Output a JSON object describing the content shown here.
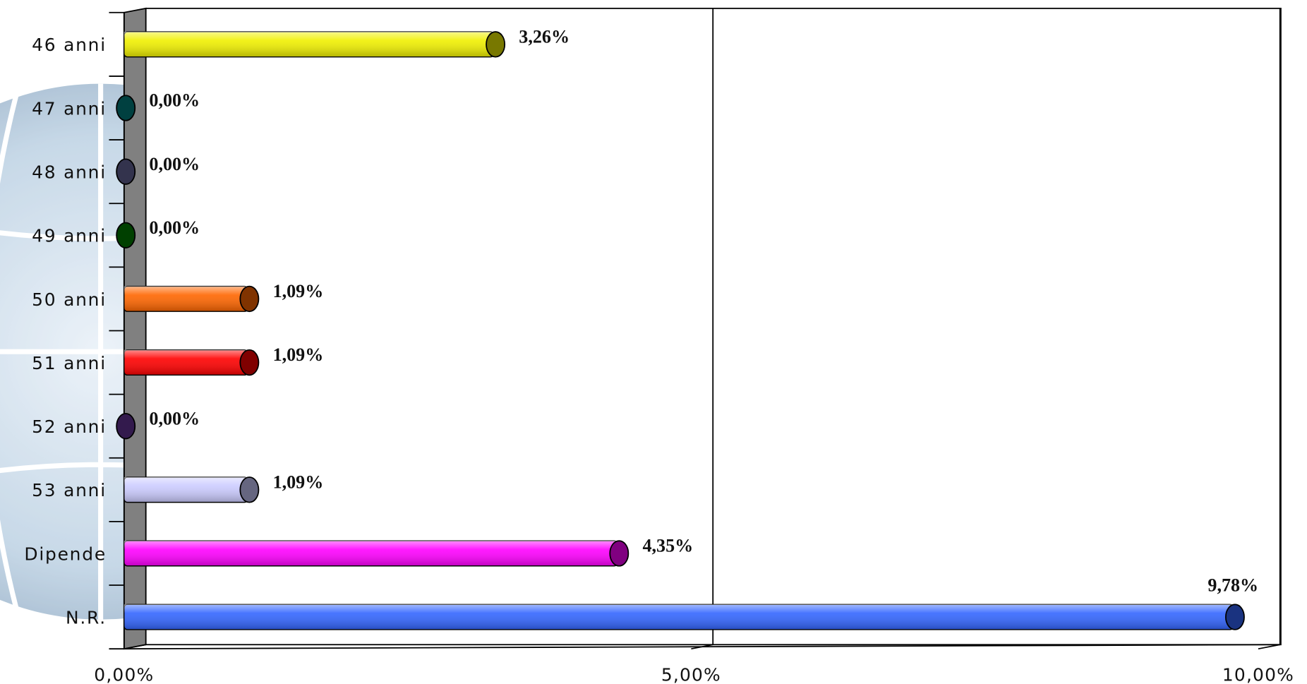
{
  "chart_data": {
    "type": "bar",
    "orientation": "horizontal",
    "categories": [
      "46 anni",
      "47 anni",
      "48 anni",
      "49 anni",
      "50 anni",
      "51 anni",
      "52 anni",
      "53 anni",
      "Dipende",
      "N.R."
    ],
    "values": [
      3.26,
      0,
      0,
      0,
      1.09,
      1.09,
      0,
      1.09,
      4.35,
      9.78
    ],
    "value_labels": [
      "3,26%",
      "0,00%",
      "0,00%",
      "0,00%",
      "1,09%",
      "1,09%",
      "0,00%",
      "1,09%",
      "4,35%",
      "9,78%"
    ],
    "colors": [
      "#f0f000",
      "#008080",
      "#666699",
      "#008000",
      "#ff6600",
      "#ff0000",
      "#663399",
      "#ccccff",
      "#ff00ff",
      "#3366ff"
    ],
    "xlim": [
      0,
      10
    ],
    "xticks": [
      {
        "value": 0,
        "label": "0,00%"
      },
      {
        "value": 5,
        "label": "5,00%"
      },
      {
        "value": 10,
        "label": "10,00%"
      }
    ],
    "grid": true
  }
}
